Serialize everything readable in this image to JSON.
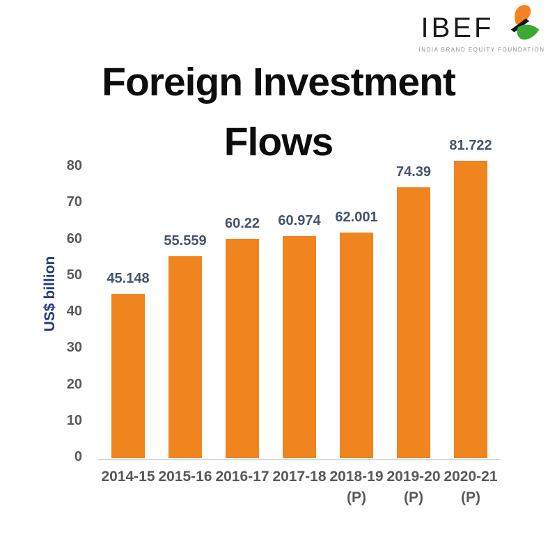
{
  "logo": {
    "text": "IBEF",
    "subtitle": "INDIA BRAND EQUITY FOUNDATION",
    "colors": {
      "orange": "#F58220",
      "green": "#3CA935",
      "black": "#1a1a1a",
      "gray": "#8c8c8c"
    }
  },
  "title": {
    "line1": "Foreign Investment",
    "line2": "Flows"
  },
  "chart_data": {
    "type": "bar",
    "categories": [
      "2014-15",
      "2015-16",
      "2016-17",
      "2017-18",
      "2018-19 (P)",
      "2019-20 (P)",
      "2020-21 (P)"
    ],
    "values": [
      45.148,
      55.559,
      60.22,
      60.974,
      62.001,
      74.39,
      81.722
    ],
    "value_labels": [
      "45.148",
      "55.559",
      "60.22",
      "60.974",
      "62.001",
      "74.39",
      "81.722"
    ],
    "title": "Foreign Investment Flows",
    "xlabel": "",
    "ylabel": "US$ billion",
    "yticks": [
      0,
      10,
      20,
      30,
      40,
      50,
      60,
      70,
      80
    ],
    "ylim": [
      0,
      88
    ],
    "grid": false,
    "legend_position": "none",
    "bar_color": "#F0841F",
    "value_label_color": "#44546A",
    "tick_label_color": "#595959",
    "axis_title_color": "#263A80",
    "axis_line_color": "#D9D9D9"
  }
}
